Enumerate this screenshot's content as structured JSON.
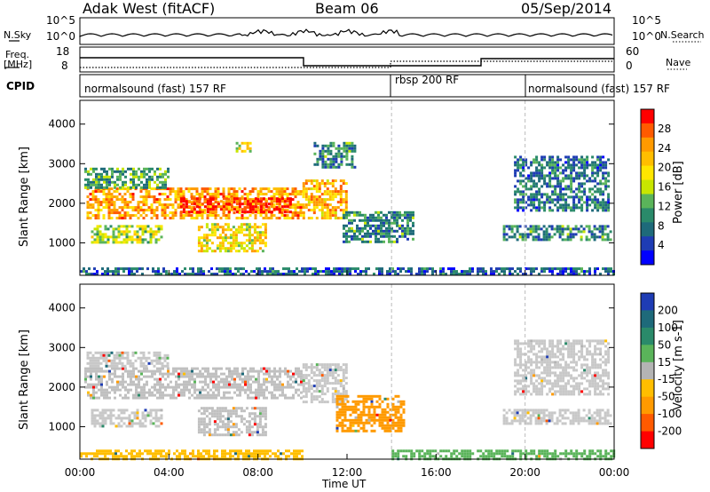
{
  "header": {
    "station": "Adak West (fitACF)",
    "beam": "Beam 06",
    "date": "05/Sep/2014"
  },
  "top_panels": {
    "nsky_label": "N.Sky",
    "nsearch_label": "N.Search",
    "noise_ticks": [
      "10^5",
      "10^0"
    ],
    "noise_ticks_right": [
      "10^5",
      "10^0"
    ],
    "freq_label": "Freq.",
    "freq_unit": "[MHz]",
    "freq_ticks": [
      "18",
      "8"
    ],
    "nave_label": "Nave",
    "nave_ticks": [
      "60",
      "0"
    ],
    "cpid_label": "CPID",
    "cpid_segments": [
      {
        "label": "normalsound (fast) 157 RF",
        "start_hr": 0,
        "end_hr": 14
      },
      {
        "label": "rbsp 200 RF",
        "start_hr": 14,
        "end_hr": 20
      },
      {
        "label": "normalsound (fast) 157 RF",
        "start_hr": 20,
        "end_hr": 24
      }
    ]
  },
  "chart_data": [
    {
      "type": "heatmap",
      "name": "power",
      "ylabel": "Slant Range [km]",
      "yticks": [
        "1000",
        "2000",
        "3000",
        "4000"
      ],
      "xticks": [
        "00:00",
        "04:00",
        "08:00",
        "12:00",
        "16:00",
        "20:00",
        "00:00"
      ],
      "xlabel": "Time UT",
      "colorbar_label": "Power [dB]",
      "colorbar_ticks": [
        "28",
        "24",
        "20",
        "16",
        "12",
        "8",
        "4"
      ],
      "colorbar_colors": [
        "#ff0000",
        "#ff5a00",
        "#ff9a00",
        "#ffbe00",
        "#ffe600",
        "#c8e600",
        "#5ab45a",
        "#2a8a6a",
        "#1e6a7a",
        "#1e3cb4",
        "#0000ff"
      ],
      "x_range_hr": [
        0,
        24
      ],
      "y_range_km": [
        180,
        4600
      ],
      "regions": [
        {
          "t0": 0.3,
          "t1": 10.0,
          "r0": 1650,
          "r1": 2400,
          "level": 0.75
        },
        {
          "t0": 4.5,
          "t1": 9.5,
          "r0": 1750,
          "r1": 2150,
          "level": 0.92
        },
        {
          "t0": 0.2,
          "t1": 4.0,
          "r0": 2400,
          "r1": 2900,
          "level": 0.35
        },
        {
          "t0": 0.5,
          "t1": 3.7,
          "r0": 1000,
          "r1": 1450,
          "level": 0.5
        },
        {
          "t0": 5.3,
          "t1": 8.3,
          "r0": 800,
          "r1": 1500,
          "level": 0.6
        },
        {
          "t0": 7.0,
          "t1": 7.6,
          "r0": 3300,
          "r1": 3550,
          "level": 0.55
        },
        {
          "t0": 10.0,
          "t1": 12.0,
          "r0": 1600,
          "r1": 2600,
          "level": 0.7
        },
        {
          "t0": 10.5,
          "t1": 12.4,
          "r0": 2900,
          "r1": 3550,
          "level": 0.3
        },
        {
          "t0": 11.8,
          "t1": 15.0,
          "r0": 1000,
          "r1": 1800,
          "level": 0.3
        },
        {
          "t0": 19.0,
          "t1": 23.8,
          "r0": 1100,
          "r1": 1450,
          "level": 0.3
        },
        {
          "t0": 19.5,
          "t1": 23.8,
          "r0": 1800,
          "r1": 3200,
          "level": 0.25
        },
        {
          "t0": 0.0,
          "t1": 24.0,
          "r0": 180,
          "r1": 380,
          "level": 0.2
        }
      ]
    },
    {
      "type": "heatmap",
      "name": "velocity",
      "ylabel": "Slant Range [km]",
      "yticks": [
        "1000",
        "2000",
        "3000",
        "4000"
      ],
      "xticks": [
        "00:00",
        "04:00",
        "08:00",
        "12:00",
        "16:00",
        "20:00",
        "00:00"
      ],
      "xlabel": "Time UT",
      "colorbar_label": "Velocity [m s-1]",
      "colorbar_ticks": [
        "200",
        "100",
        "50",
        "15",
        "-15",
        "-50",
        "-100",
        "-200"
      ],
      "colorbar_colors": [
        "#1e3cb4",
        "#1e6a7a",
        "#2a8a6a",
        "#5ab45a",
        "#b4b4b4",
        "#ffbe00",
        "#ff9a00",
        "#ff5a00",
        "#ff0000"
      ],
      "x_range_hr": [
        0,
        24
      ],
      "y_range_km": [
        180,
        4600
      ],
      "regions": [
        {
          "t0": 0.2,
          "t1": 10.0,
          "r0": 1700,
          "r1": 2500,
          "color": "#c0c0c0"
        },
        {
          "t0": 0.3,
          "t1": 4.0,
          "r0": 2500,
          "r1": 2900,
          "color": "#c8c8c8"
        },
        {
          "t0": 0.5,
          "t1": 3.7,
          "r0": 1000,
          "r1": 1450,
          "color": "#c8c8c8"
        },
        {
          "t0": 5.3,
          "t1": 8.3,
          "r0": 800,
          "r1": 1500,
          "color": "#c0c0c0"
        },
        {
          "t0": 10.0,
          "t1": 12.0,
          "r0": 1600,
          "r1": 2600,
          "color": "#c8c8c8"
        },
        {
          "t0": 11.5,
          "t1": 14.6,
          "r0": 900,
          "r1": 1800,
          "color": "#ff9a00"
        },
        {
          "t0": 19.0,
          "t1": 23.8,
          "r0": 1100,
          "r1": 1450,
          "color": "#c8c8c8"
        },
        {
          "t0": 19.5,
          "t1": 23.8,
          "r0": 1800,
          "r1": 3200,
          "color": "#c8c8c8"
        },
        {
          "t0": 0.0,
          "t1": 10.0,
          "r0": 180,
          "r1": 420,
          "color": "#ffbe00"
        },
        {
          "t0": 14.0,
          "t1": 24.0,
          "r0": 180,
          "r1": 420,
          "color": "#5ab45a"
        }
      ]
    }
  ]
}
